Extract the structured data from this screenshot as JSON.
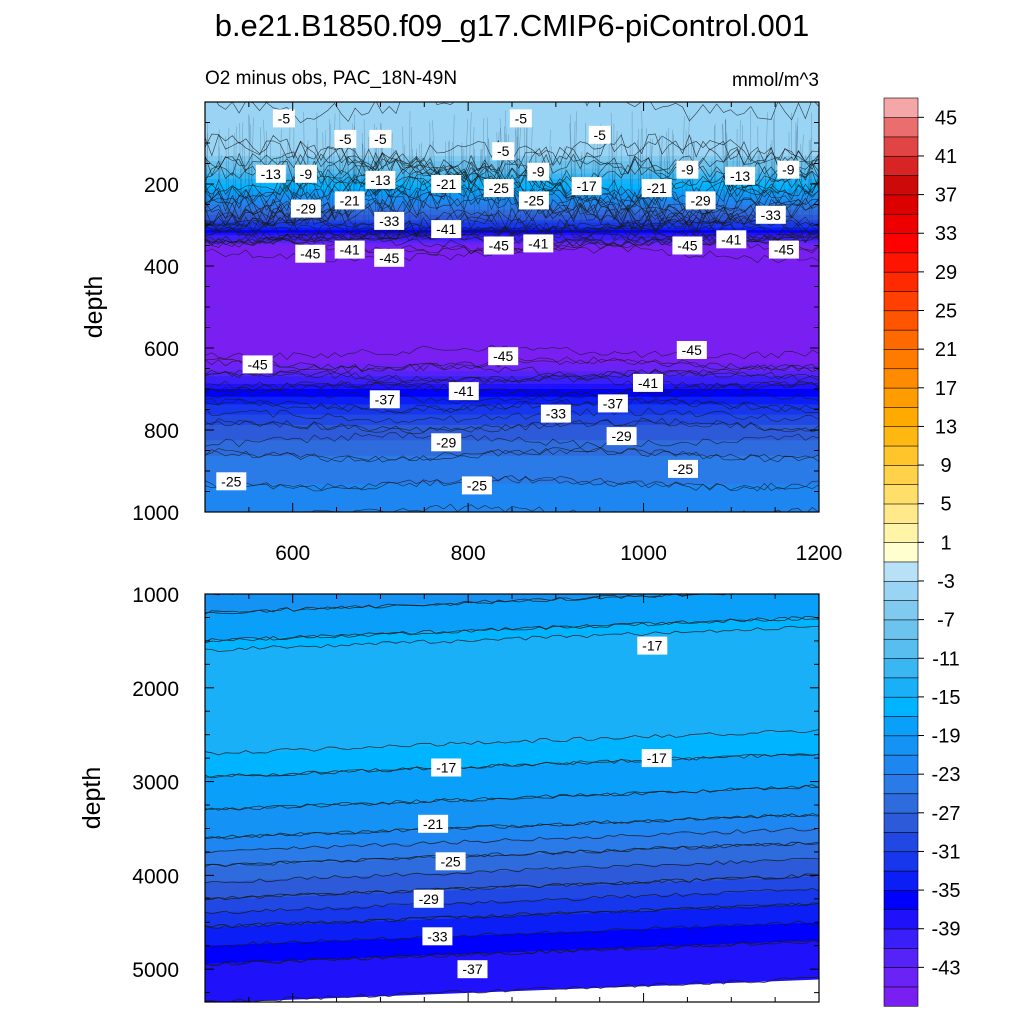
{
  "title": "b.e21.B1850.f09_g17.CMIP6-piControl.001",
  "colorbar": {
    "levels": [
      -47,
      -45,
      -43,
      -41,
      -39,
      -37,
      -35,
      -33,
      -31,
      -29,
      -27,
      -25,
      -23,
      -21,
      -19,
      -17,
      -15,
      -13,
      -11,
      -9,
      -7,
      -5,
      -3,
      -1,
      1,
      3,
      5,
      7,
      9,
      11,
      13,
      15,
      17,
      19,
      21,
      23,
      25,
      27,
      29,
      31,
      33,
      35,
      37,
      39,
      41,
      43,
      45,
      47
    ],
    "colors": [
      "#7a1ff2",
      "#6a22f5",
      "#5522f7",
      "#3b1ff8",
      "#1f12fa",
      "#0000ff",
      "#0a1ef5",
      "#1637ec",
      "#2148e2",
      "#2c5ad9",
      "#2e6bdc",
      "#2a7ae8",
      "#1e86f0",
      "#1493f5",
      "#0aa0fa",
      "#00b4ff",
      "#1ab0f7",
      "#3ab6f2",
      "#58bdef",
      "#6cc3ee",
      "#80caf0",
      "#9ad4f4",
      "#b8e1f7",
      "#ffffd0",
      "#fff4a8",
      "#ffe98a",
      "#ffdf6a",
      "#ffd24a",
      "#ffc52a",
      "#ffb812",
      "#ffaa00",
      "#ff9c00",
      "#ff8c00",
      "#ff7b00",
      "#ff6a00",
      "#ff5500",
      "#ff4000",
      "#ff2a00",
      "#ff1400",
      "#ff0000",
      "#ee0000",
      "#dd0000",
      "#cc0a0a",
      "#d82424",
      "#e04444",
      "#ea6e6e",
      "#f5a6a6"
    ],
    "tick_labels": [
      "45",
      "41",
      "37",
      "33",
      "29",
      "25",
      "21",
      "17",
      "13",
      "9",
      "5",
      "1",
      "-3",
      "-7",
      "-11",
      "-15",
      "-19",
      "-23",
      "-27",
      "-31",
      "-35",
      "-39",
      "-43"
    ]
  },
  "chart_data": [
    {
      "type": "contour",
      "panel": "top",
      "title_left": "O2 minus obs, PAC_18N-49N",
      "title_right": "mmol/m^3",
      "xlabel": "",
      "ylabel": "depth",
      "xlim": [
        500,
        1200
      ],
      "ylim": [
        1000,
        0
      ],
      "x_ticks": [
        "600",
        "800",
        "1000",
        "1200"
      ],
      "y_ticks": [
        "200",
        "400",
        "600",
        "800",
        "1000"
      ],
      "depth_profile": [
        {
          "depth": 0,
          "value": -3
        },
        {
          "depth": 50,
          "value": -4
        },
        {
          "depth": 130,
          "value": -5
        },
        {
          "depth": 160,
          "value": -9
        },
        {
          "depth": 190,
          "value": -13
        },
        {
          "depth": 215,
          "value": -17
        },
        {
          "depth": 240,
          "value": -21
        },
        {
          "depth": 265,
          "value": -25
        },
        {
          "depth": 285,
          "value": -29
        },
        {
          "depth": 305,
          "value": -33
        },
        {
          "depth": 320,
          "value": -37
        },
        {
          "depth": 335,
          "value": -41
        },
        {
          "depth": 350,
          "value": -45
        },
        {
          "depth": 370,
          "value": -47
        },
        {
          "depth": 610,
          "value": -47
        },
        {
          "depth": 640,
          "value": -45
        },
        {
          "depth": 670,
          "value": -41
        },
        {
          "depth": 700,
          "value": -37
        },
        {
          "depth": 740,
          "value": -33
        },
        {
          "depth": 790,
          "value": -29
        },
        {
          "depth": 860,
          "value": -25
        },
        {
          "depth": 930,
          "value": -23
        },
        {
          "depth": 1000,
          "value": -21
        }
      ],
      "contour_labels": [
        {
          "text": "-5",
          "x": 590,
          "depth": 40
        },
        {
          "text": "-5",
          "x": 860,
          "depth": 40
        },
        {
          "text": "-5",
          "x": 660,
          "depth": 90
        },
        {
          "text": "-5",
          "x": 700,
          "depth": 90
        },
        {
          "text": "-5",
          "x": 950,
          "depth": 80
        },
        {
          "text": "-5",
          "x": 840,
          "depth": 120
        },
        {
          "text": "-13",
          "x": 575,
          "depth": 175
        },
        {
          "text": "-9",
          "x": 615,
          "depth": 175
        },
        {
          "text": "-13",
          "x": 700,
          "depth": 190
        },
        {
          "text": "-9",
          "x": 880,
          "depth": 170
        },
        {
          "text": "-9",
          "x": 1050,
          "depth": 165
        },
        {
          "text": "-13",
          "x": 1110,
          "depth": 180
        },
        {
          "text": "-9",
          "x": 1165,
          "depth": 165
        },
        {
          "text": "-21",
          "x": 665,
          "depth": 240
        },
        {
          "text": "-21",
          "x": 775,
          "depth": 200
        },
        {
          "text": "-25",
          "x": 835,
          "depth": 210
        },
        {
          "text": "-25",
          "x": 875,
          "depth": 240
        },
        {
          "text": "-17",
          "x": 935,
          "depth": 205
        },
        {
          "text": "-21",
          "x": 1015,
          "depth": 210
        },
        {
          "text": "-29",
          "x": 1065,
          "depth": 240
        },
        {
          "text": "-29",
          "x": 615,
          "depth": 260
        },
        {
          "text": "-33",
          "x": 710,
          "depth": 290
        },
        {
          "text": "-41",
          "x": 775,
          "depth": 310
        },
        {
          "text": "-33",
          "x": 1145,
          "depth": 275
        },
        {
          "text": "-41",
          "x": 665,
          "depth": 360
        },
        {
          "text": "-45",
          "x": 620,
          "depth": 370
        },
        {
          "text": "-45",
          "x": 710,
          "depth": 380
        },
        {
          "text": "-45",
          "x": 835,
          "depth": 350
        },
        {
          "text": "-41",
          "x": 880,
          "depth": 345
        },
        {
          "text": "-45",
          "x": 1050,
          "depth": 350
        },
        {
          "text": "-41",
          "x": 1100,
          "depth": 335
        },
        {
          "text": "-45",
          "x": 1160,
          "depth": 360
        },
        {
          "text": "-45",
          "x": 560,
          "depth": 640
        },
        {
          "text": "-45",
          "x": 840,
          "depth": 620
        },
        {
          "text": "-45",
          "x": 1055,
          "depth": 605
        },
        {
          "text": "-37",
          "x": 705,
          "depth": 725
        },
        {
          "text": "-41",
          "x": 795,
          "depth": 705
        },
        {
          "text": "-41",
          "x": 1005,
          "depth": 685
        },
        {
          "text": "-37",
          "x": 965,
          "depth": 735
        },
        {
          "text": "-33",
          "x": 900,
          "depth": 760
        },
        {
          "text": "-29",
          "x": 775,
          "depth": 830
        },
        {
          "text": "-29",
          "x": 975,
          "depth": 815
        },
        {
          "text": "-25",
          "x": 1045,
          "depth": 895
        },
        {
          "text": "-25",
          "x": 530,
          "depth": 925
        },
        {
          "text": "-25",
          "x": 810,
          "depth": 935
        }
      ]
    },
    {
      "type": "contour",
      "panel": "bottom",
      "xlabel": "",
      "ylabel": "depth",
      "xlim": [
        500,
        1200
      ],
      "ylim": [
        5350,
        1000
      ],
      "y_ticks": [
        "1000",
        "2000",
        "3000",
        "4000",
        "5000"
      ],
      "depth_profile": [
        {
          "depth": 1000,
          "value": -21
        },
        {
          "depth": 1200,
          "value": -19
        },
        {
          "depth": 1500,
          "value": -17
        },
        {
          "depth": 1600,
          "value": -15
        },
        {
          "depth": 2700,
          "value": -15
        },
        {
          "depth": 2950,
          "value": -17
        },
        {
          "depth": 3300,
          "value": -19
        },
        {
          "depth": 3600,
          "value": -21
        },
        {
          "depth": 3900,
          "value": -25
        },
        {
          "depth": 4250,
          "value": -29
        },
        {
          "depth": 4550,
          "value": -33
        },
        {
          "depth": 4950,
          "value": -37
        },
        {
          "depth": 5350,
          "value": -39
        }
      ],
      "depth_offset_at_right_edge": -250,
      "contour_labels": [
        {
          "text": "-17",
          "x": 1010,
          "depth": 1550
        },
        {
          "text": "-17",
          "x": 775,
          "depth": 2850
        },
        {
          "text": "-17",
          "x": 1015,
          "depth": 2750
        },
        {
          "text": "-21",
          "x": 760,
          "depth": 3450
        },
        {
          "text": "-25",
          "x": 780,
          "depth": 3850
        },
        {
          "text": "-29",
          "x": 755,
          "depth": 4250
        },
        {
          "text": "-33",
          "x": 765,
          "depth": 4650
        },
        {
          "text": "-37",
          "x": 805,
          "depth": 5000
        }
      ]
    }
  ]
}
